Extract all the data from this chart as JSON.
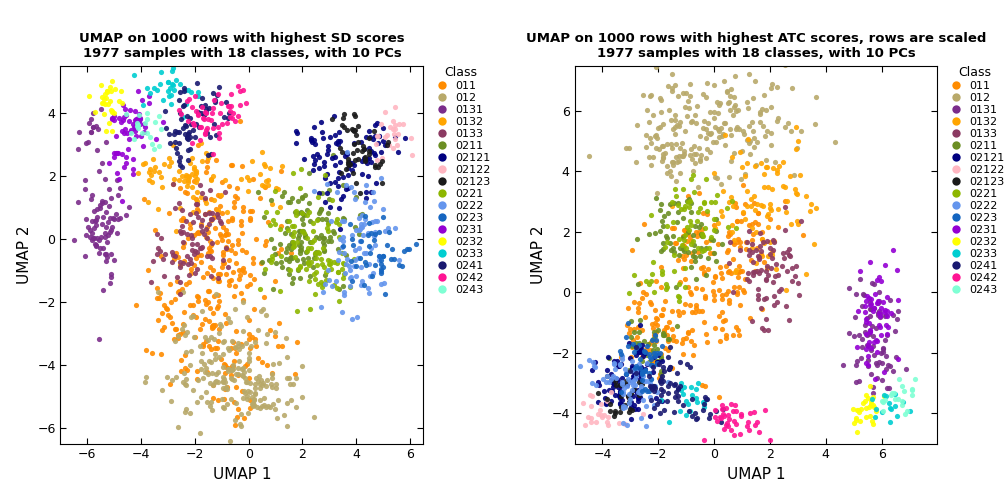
{
  "title1": "UMAP on 1000 rows with highest SD scores\n1977 samples with 18 classes, with 10 PCs",
  "title2": "UMAP on 1000 rows with highest ATC scores, rows are scaled\n1977 samples with 18 classes, with 10 PCs",
  "xlabel": "UMAP 1",
  "ylabel": "UMAP 2",
  "classes": [
    "011",
    "012",
    "0131",
    "0132",
    "0133",
    "0211",
    "02121",
    "02122",
    "02123",
    "0221",
    "0222",
    "0223",
    "0231",
    "0232",
    "0233",
    "0241",
    "0242",
    "0243"
  ],
  "colors": {
    "011": "#FF8C00",
    "012": "#B8A96A",
    "0131": "#7B2D8B",
    "0132": "#FFA500",
    "0133": "#8B3A62",
    "0211": "#6B8E23",
    "02121": "#000080",
    "02122": "#FFB6C1",
    "02123": "#1A1A1A",
    "0221": "#8DB600",
    "0222": "#6495ED",
    "0223": "#1565C0",
    "0231": "#9400D3",
    "0232": "#FFFF00",
    "0233": "#00CED1",
    "0241": "#191970",
    "0242": "#FF1493",
    "0243": "#7FFFD4"
  },
  "plot1_xlim": [
    -7,
    6.5
  ],
  "plot1_ylim": [
    -6.5,
    5.5
  ],
  "plot2_xlim": [
    -5,
    8
  ],
  "plot2_ylim": [
    -5,
    7.5
  ],
  "plot1_xticks": [
    -6,
    -4,
    -2,
    0,
    2,
    4,
    6
  ],
  "plot1_yticks": [
    -6,
    -4,
    -2,
    0,
    2,
    4
  ],
  "plot2_xticks": [
    -4,
    -2,
    0,
    2,
    4,
    6
  ],
  "plot2_yticks": [
    -4,
    -2,
    0,
    2,
    4,
    6
  ],
  "point_size": 14,
  "alpha": 0.9,
  "background_color": "#FFFFFF",
  "panel_bg": "#FFFFFF"
}
